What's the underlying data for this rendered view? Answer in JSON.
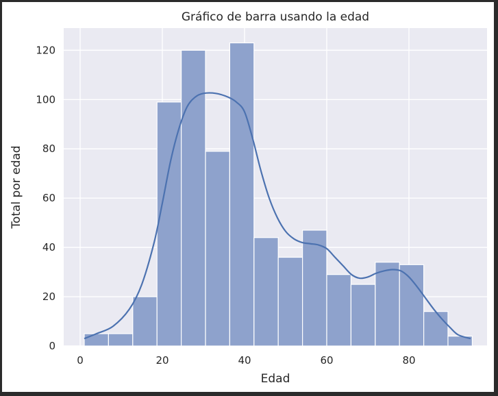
{
  "chart_data": {
    "type": "bar",
    "title": "Gráfico de barra usando la edad",
    "xlabel": "Edad",
    "ylabel": "Total por edad",
    "xlim": [
      -4.0,
      99.0
    ],
    "ylim": [
      0,
      129
    ],
    "xticks": [
      0,
      20,
      40,
      60,
      80
    ],
    "yticks": [
      0,
      20,
      40,
      60,
      80,
      100,
      120
    ],
    "grid": true,
    "bins": [
      {
        "x0": 1.0,
        "x1": 6.9,
        "value": 5
      },
      {
        "x0": 6.9,
        "x1": 12.8,
        "value": 5
      },
      {
        "x0": 12.8,
        "x1": 18.7,
        "value": 20
      },
      {
        "x0": 18.7,
        "x1": 24.6,
        "value": 99
      },
      {
        "x0": 24.6,
        "x1": 30.5,
        "value": 120
      },
      {
        "x0": 30.5,
        "x1": 36.4,
        "value": 79
      },
      {
        "x0": 36.4,
        "x1": 42.3,
        "value": 123
      },
      {
        "x0": 42.3,
        "x1": 48.2,
        "value": 44
      },
      {
        "x0": 48.2,
        "x1": 54.1,
        "value": 36
      },
      {
        "x0": 54.1,
        "x1": 60.0,
        "value": 47
      },
      {
        "x0": 60.0,
        "x1": 65.9,
        "value": 29
      },
      {
        "x0": 65.9,
        "x1": 71.8,
        "value": 25
      },
      {
        "x0": 71.8,
        "x1": 77.7,
        "value": 34
      },
      {
        "x0": 77.7,
        "x1": 83.6,
        "value": 33
      },
      {
        "x0": 83.6,
        "x1": 89.5,
        "value": 14
      },
      {
        "x0": 89.5,
        "x1": 95.4,
        "value": 4
      }
    ],
    "kde": {
      "x": [
        1,
        4,
        8,
        12,
        15,
        18,
        20,
        22,
        24,
        26,
        28,
        30,
        33,
        36,
        38,
        40,
        42,
        44,
        46,
        48,
        50,
        52,
        54,
        56,
        58,
        60,
        62,
        64,
        66,
        68,
        70,
        72,
        74,
        76,
        78,
        80,
        82,
        84,
        86,
        88,
        90,
        92,
        95
      ],
      "y": [
        3,
        5,
        8,
        15,
        25,
        42,
        58,
        75,
        88,
        97,
        101,
        102.5,
        102.5,
        101,
        99,
        95,
        84,
        71,
        60,
        52,
        46.5,
        43.5,
        42,
        41.5,
        41,
        39.5,
        36,
        32.5,
        29,
        27.5,
        28,
        29.5,
        30.5,
        31,
        30.5,
        28,
        24,
        19.5,
        15,
        11,
        7.5,
        4.5,
        3
      ]
    },
    "colors": {
      "bar_fill": "#8ea2cc",
      "bar_edge": "#ffffff",
      "line": "#4c72b0",
      "axes_bg": "#eaeaf2",
      "grid": "#ffffff"
    }
  }
}
